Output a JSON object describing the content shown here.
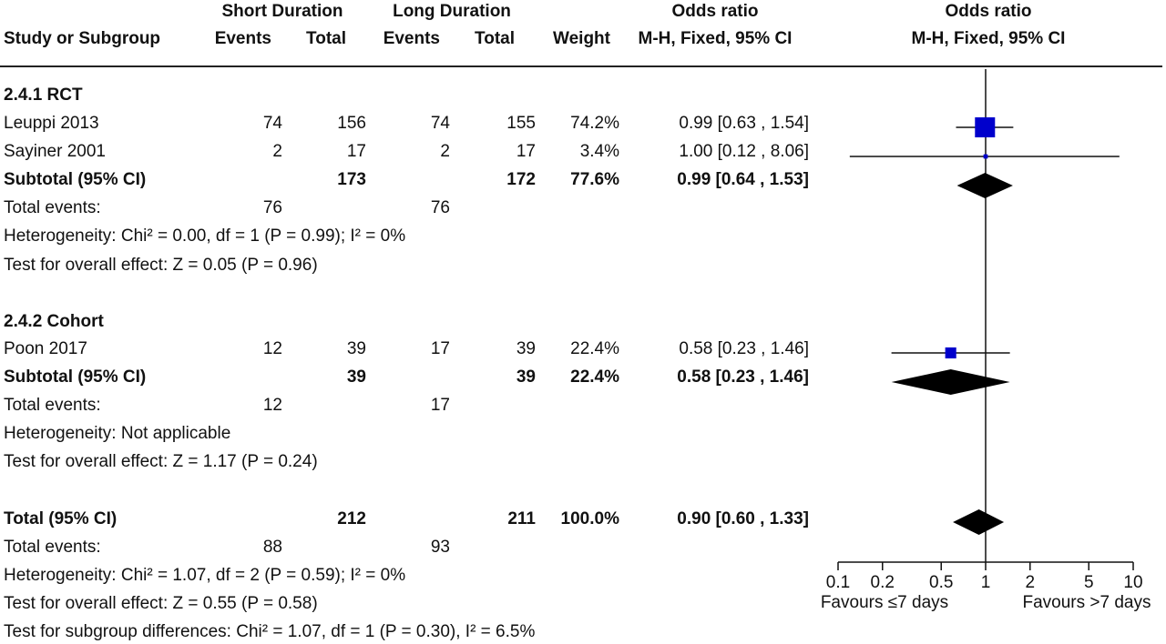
{
  "headers": {
    "group1": "Short Duration",
    "group2": "Long Duration",
    "study": "Study or Subgroup",
    "events1": "Events",
    "total1": "Total",
    "events2": "Events",
    "total2": "Total",
    "weight": "Weight",
    "or_title": "Odds ratio",
    "or_method": "M-H, Fixed, 95% CI",
    "plot_title": "Odds ratio",
    "plot_method": "M-H, Fixed, 95% CI"
  },
  "subgroups": [
    {
      "title": "2.4.1 RCT",
      "studies": [
        {
          "name": "Leuppi 2013",
          "e1": "74",
          "t1": "156",
          "e2": "74",
          "t2": "155",
          "weight": "74.2%",
          "or_text": "0.99 [0.63 , 1.54]"
        },
        {
          "name": "Sayiner 2001",
          "e1": "2",
          "t1": "17",
          "e2": "2",
          "t2": "17",
          "weight": "3.4%",
          "or_text": "1.00 [0.12 , 8.06]"
        }
      ],
      "subtotal": {
        "label": "Subtotal (95% CI)",
        "t1": "173",
        "t2": "172",
        "weight": "77.6%",
        "or_text": "0.99 [0.64 , 1.53]"
      },
      "total_events": {
        "label": "Total events:",
        "e1": "76",
        "e2": "76"
      },
      "heterogeneity": "Heterogeneity: Chi² = 0.00, df = 1 (P = 0.99); I² = 0%",
      "overall": "Test for overall effect: Z = 0.05 (P = 0.96)"
    },
    {
      "title": "2.4.2 Cohort",
      "studies": [
        {
          "name": "Poon 2017",
          "e1": "12",
          "t1": "39",
          "e2": "17",
          "t2": "39",
          "weight": "22.4%",
          "or_text": "0.58 [0.23 , 1.46]"
        }
      ],
      "subtotal": {
        "label": "Subtotal (95% CI)",
        "t1": "39",
        "t2": "39",
        "weight": "22.4%",
        "or_text": "0.58 [0.23 , 1.46]"
      },
      "total_events": {
        "label": "Total events:",
        "e1": "12",
        "e2": "17"
      },
      "heterogeneity": "Heterogeneity: Not applicable",
      "overall": "Test for overall effect: Z = 1.17 (P = 0.24)"
    }
  ],
  "total": {
    "label": "Total (95% CI)",
    "t1": "212",
    "t2": "211",
    "weight": "100.0%",
    "or_text": "0.90 [0.60 , 1.33]",
    "total_events": {
      "label": "Total events:",
      "e1": "88",
      "e2": "93"
    },
    "heterogeneity": "Heterogeneity: Chi² = 1.07, df = 2 (P = 0.59); I² = 0%",
    "overall": "Test for overall effect: Z = 0.55 (P = 0.58)",
    "subgroup_diff": "Test for subgroup differences: Chi² = 1.07, df = 1 (P = 0.30), I² = 6.5%"
  },
  "chart_data": {
    "type": "forest",
    "scale": "log",
    "xlim": [
      0.1,
      10
    ],
    "ticks": [
      0.1,
      0.2,
      0.5,
      1,
      2,
      5,
      10
    ],
    "tick_labels": [
      "0.1",
      "0.2",
      "0.5",
      "1",
      "2",
      "5",
      "10"
    ],
    "null_value": 1,
    "favours_left": "Favours ≤7 days",
    "favours_right": "Favours >7 days",
    "point_color": "#0000cc",
    "diamond_color": "#000000",
    "studies": [
      {
        "name": "Leuppi 2013",
        "or": 0.99,
        "lower": 0.63,
        "upper": 1.54,
        "weight": 74.2
      },
      {
        "name": "Sayiner 2001",
        "or": 1.0,
        "lower": 0.12,
        "upper": 8.06,
        "weight": 3.4
      },
      {
        "name": "Poon 2017",
        "or": 0.58,
        "lower": 0.23,
        "upper": 1.46,
        "weight": 22.4
      }
    ],
    "diamonds": [
      {
        "name": "Subtotal 2.4.1 RCT",
        "or": 0.99,
        "lower": 0.64,
        "upper": 1.53
      },
      {
        "name": "Subtotal 2.4.2 Cohort",
        "or": 0.58,
        "lower": 0.23,
        "upper": 1.46
      },
      {
        "name": "Total",
        "or": 0.9,
        "lower": 0.6,
        "upper": 1.33
      }
    ]
  }
}
